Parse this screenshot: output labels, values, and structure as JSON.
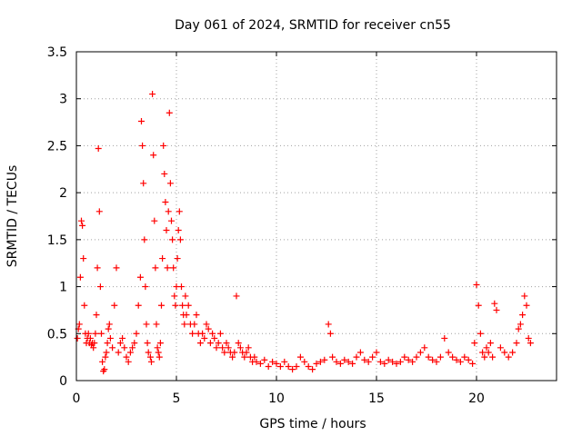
{
  "chart_data": {
    "type": "scatter",
    "title": "Day 061 of 2024, SRMTID for receiver cn55",
    "xlabel": "GPS time / hours",
    "ylabel": "SRMTID / TECUs",
    "xlim": [
      0,
      24
    ],
    "ylim": [
      0,
      3.5
    ],
    "x_ticks": [
      0,
      5,
      10,
      15,
      20
    ],
    "y_ticks": [
      0,
      0.5,
      1,
      1.5,
      2,
      2.5,
      3,
      3.5
    ],
    "x_tick_labels": [
      "0",
      "5",
      "10",
      "15",
      "20"
    ],
    "y_tick_labels": [
      "0",
      "0.5",
      "1",
      "1.5",
      "2",
      "2.5",
      "3",
      "3.5"
    ],
    "grid": true,
    "marker": "+",
    "marker_color": "#ff0000",
    "series": [
      {
        "name": "cn55",
        "x": [
          0.05,
          0.1,
          0.15,
          0.2,
          0.25,
          0.3,
          0.35,
          0.4,
          0.45,
          0.5,
          0.55,
          0.6,
          0.65,
          0.7,
          0.75,
          0.8,
          0.85,
          0.9,
          0.95,
          1.0,
          1.05,
          1.1,
          1.15,
          1.2,
          1.25,
          1.3,
          1.35,
          1.4,
          1.45,
          1.5,
          1.55,
          1.6,
          1.65,
          1.7,
          1.8,
          1.9,
          2.0,
          2.1,
          2.2,
          2.3,
          2.4,
          2.5,
          2.6,
          2.7,
          2.8,
          2.9,
          3.0,
          3.1,
          3.2,
          3.25,
          3.3,
          3.35,
          3.4,
          3.45,
          3.5,
          3.55,
          3.6,
          3.7,
          3.75,
          3.8,
          3.85,
          3.9,
          3.95,
          4.0,
          4.05,
          4.1,
          4.15,
          4.2,
          4.25,
          4.3,
          4.35,
          4.4,
          4.45,
          4.5,
          4.55,
          4.6,
          4.65,
          4.7,
          4.75,
          4.8,
          4.85,
          4.9,
          4.95,
          5.0,
          5.05,
          5.1,
          5.15,
          5.2,
          5.25,
          5.3,
          5.35,
          5.4,
          5.45,
          5.5,
          5.6,
          5.7,
          5.8,
          5.9,
          6.0,
          6.1,
          6.2,
          6.3,
          6.4,
          6.5,
          6.6,
          6.7,
          6.8,
          6.9,
          7.0,
          7.1,
          7.2,
          7.3,
          7.4,
          7.5,
          7.6,
          7.7,
          7.8,
          7.9,
          8.0,
          8.1,
          8.2,
          8.3,
          8.4,
          8.5,
          8.6,
          8.7,
          8.8,
          8.9,
          9.0,
          9.2,
          9.4,
          9.6,
          9.8,
          10.0,
          10.2,
          10.4,
          10.6,
          10.8,
          11.0,
          11.2,
          11.4,
          11.6,
          11.8,
          12.0,
          12.2,
          12.4,
          12.6,
          12.7,
          12.8,
          13.0,
          13.2,
          13.4,
          13.6,
          13.8,
          14.0,
          14.2,
          14.4,
          14.6,
          14.8,
          15.0,
          15.2,
          15.4,
          15.6,
          15.8,
          16.0,
          16.2,
          16.4,
          16.6,
          16.8,
          17.0,
          17.2,
          17.4,
          17.6,
          17.8,
          18.0,
          18.2,
          18.4,
          18.6,
          18.8,
          19.0,
          19.2,
          19.4,
          19.6,
          19.8,
          19.9,
          20.0,
          20.1,
          20.2,
          20.3,
          20.4,
          20.5,
          20.6,
          20.7,
          20.8,
          20.9,
          21.0,
          21.2,
          21.4,
          21.6,
          21.8,
          22.0,
          22.1,
          22.2,
          22.3,
          22.4,
          22.5,
          22.6,
          22.7
        ],
        "y": [
          0.45,
          0.55,
          0.6,
          1.1,
          1.7,
          1.65,
          1.3,
          0.8,
          0.5,
          0.4,
          0.45,
          0.5,
          0.4,
          0.45,
          0.38,
          0.4,
          0.35,
          0.4,
          0.5,
          0.7,
          1.2,
          2.47,
          1.8,
          1.0,
          0.5,
          0.2,
          0.1,
          0.12,
          0.25,
          0.3,
          0.4,
          0.55,
          0.6,
          0.45,
          0.35,
          0.8,
          1.2,
          0.3,
          0.4,
          0.45,
          0.35,
          0.25,
          0.2,
          0.3,
          0.35,
          0.4,
          0.5,
          0.8,
          1.1,
          2.76,
          2.5,
          2.1,
          1.5,
          1.0,
          0.6,
          0.4,
          0.3,
          0.25,
          0.2,
          3.05,
          2.4,
          1.7,
          1.2,
          0.6,
          0.35,
          0.3,
          0.25,
          0.4,
          0.8,
          1.3,
          2.5,
          2.2,
          1.9,
          1.6,
          1.2,
          1.8,
          2.85,
          2.1,
          1.7,
          1.5,
          1.2,
          0.9,
          0.8,
          1.0,
          1.3,
          1.6,
          1.8,
          1.5,
          1.0,
          0.8,
          0.7,
          0.6,
          0.9,
          0.7,
          0.8,
          0.6,
          0.5,
          0.6,
          0.7,
          0.5,
          0.4,
          0.5,
          0.45,
          0.6,
          0.55,
          0.4,
          0.5,
          0.45,
          0.35,
          0.4,
          0.5,
          0.35,
          0.3,
          0.4,
          0.35,
          0.3,
          0.25,
          0.3,
          0.9,
          0.4,
          0.35,
          0.3,
          0.25,
          0.3,
          0.35,
          0.25,
          0.2,
          0.25,
          0.2,
          0.18,
          0.22,
          0.15,
          0.2,
          0.18,
          0.15,
          0.2,
          0.15,
          0.12,
          0.15,
          0.25,
          0.2,
          0.15,
          0.12,
          0.18,
          0.2,
          0.22,
          0.6,
          0.5,
          0.25,
          0.2,
          0.18,
          0.22,
          0.2,
          0.18,
          0.25,
          0.3,
          0.22,
          0.2,
          0.25,
          0.3,
          0.2,
          0.18,
          0.22,
          0.2,
          0.18,
          0.2,
          0.25,
          0.22,
          0.2,
          0.25,
          0.3,
          0.35,
          0.25,
          0.22,
          0.2,
          0.25,
          0.45,
          0.3,
          0.25,
          0.22,
          0.2,
          0.25,
          0.22,
          0.18,
          0.4,
          1.02,
          0.8,
          0.5,
          0.3,
          0.25,
          0.35,
          0.3,
          0.4,
          0.25,
          0.82,
          0.75,
          0.35,
          0.3,
          0.25,
          0.3,
          0.4,
          0.55,
          0.6,
          0.7,
          0.9,
          0.8,
          0.45,
          0.4
        ]
      }
    ]
  }
}
